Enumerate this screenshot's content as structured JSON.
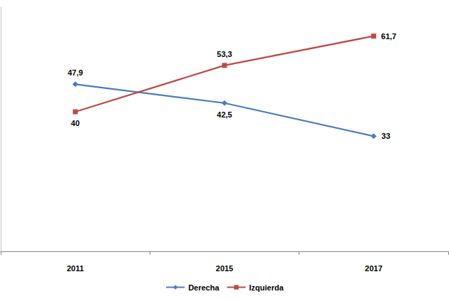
{
  "chart_data": {
    "type": "line",
    "categories": [
      "2011",
      "2015",
      "2017"
    ],
    "series": [
      {
        "name": "Derecha",
        "color": "#4a7ebb",
        "marker": "diamond",
        "values": [
          47.9,
          42.5,
          33
        ],
        "value_labels": [
          "47,9",
          "42,5",
          "33"
        ]
      },
      {
        "name": "Izquierda",
        "color": "#be4b48",
        "marker": "square",
        "values": [
          40,
          53.3,
          61.7
        ],
        "value_labels": [
          "40",
          "53,3",
          "61,7"
        ]
      }
    ],
    "ylim": [
      0,
      70
    ],
    "grid": false,
    "legend": "bottom",
    "data_labels": true,
    "tick_labels": "x"
  }
}
